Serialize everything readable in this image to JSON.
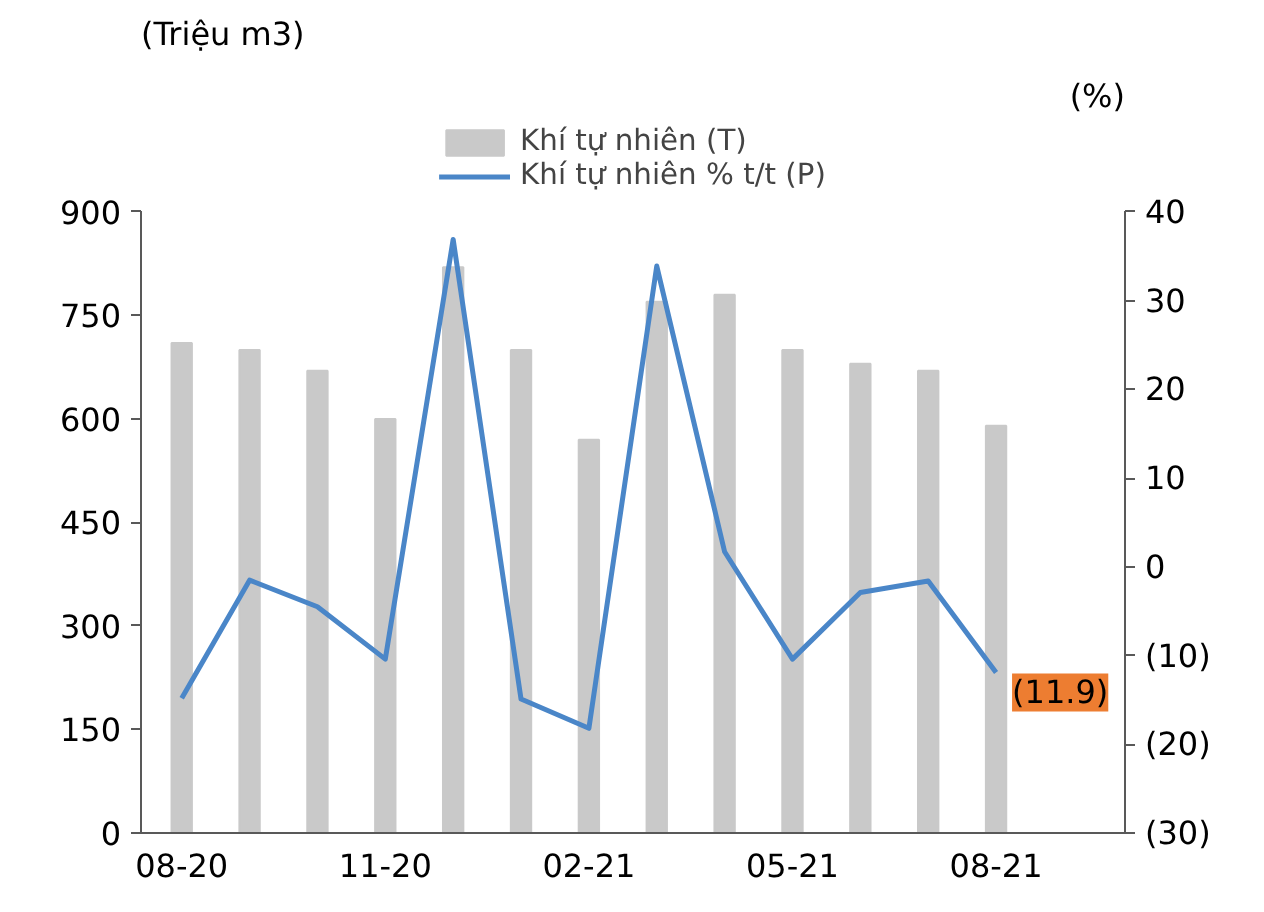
{
  "chart_data": {
    "type": "bar",
    "ylabel": "(Triệu m3)",
    "y2label": "(%)",
    "categories": [
      "08-20",
      null,
      null,
      "11-20",
      null,
      null,
      "02-21",
      null,
      null,
      "05-21",
      null,
      null,
      "08-21"
    ],
    "series": [
      {
        "name": "Khí tự nhiên (T)",
        "color": "#c9c9c9",
        "values": [
          710,
          700,
          670,
          600,
          820,
          700,
          570,
          770,
          780,
          700,
          680,
          670,
          590
        ]
      },
      {
        "name": "Khí tự nhiên % t/t (P)",
        "type": "line",
        "axis": "y2",
        "color": "#4a86c8",
        "values": [
          -14.8,
          -1.5,
          -4.5,
          -10.4,
          36.9,
          -14.9,
          -18.2,
          33.9,
          1.7,
          -10.4,
          -2.9,
          -1.6,
          -11.9
        ],
        "value_labels": [
          null,
          null,
          null,
          null,
          null,
          null,
          null,
          null,
          null,
          null,
          null,
          null,
          "(11.9)"
        ]
      }
    ],
    "ylim": [
      0,
      900
    ],
    "yticks": [
      0,
      150,
      300,
      450,
      600,
      750,
      900
    ],
    "y2lim": [
      -30,
      40
    ],
    "y2ticks": [
      {
        "value": -30,
        "label": "(30)"
      },
      {
        "value": -20,
        "label": "(20)"
      },
      {
        "value": -10,
        "label": "(10)"
      },
      0,
      10,
      20,
      30,
      40
    ],
    "grid": false,
    "legend": "top"
  }
}
